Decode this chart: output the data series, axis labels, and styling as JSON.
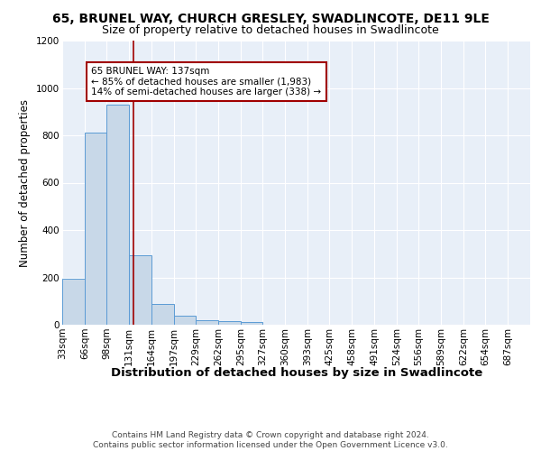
{
  "title1": "65, BRUNEL WAY, CHURCH GRESLEY, SWADLINCOTE, DE11 9LE",
  "title2": "Size of property relative to detached houses in Swadlincote",
  "xlabel": "Distribution of detached houses by size in Swadlincote",
  "ylabel": "Number of detached properties",
  "bin_labels": [
    "33sqm",
    "66sqm",
    "98sqm",
    "131sqm",
    "164sqm",
    "197sqm",
    "229sqm",
    "262sqm",
    "295sqm",
    "327sqm",
    "360sqm",
    "393sqm",
    "425sqm",
    "458sqm",
    "491sqm",
    "524sqm",
    "556sqm",
    "589sqm",
    "622sqm",
    "654sqm",
    "687sqm"
  ],
  "bin_edges": [
    33,
    66,
    98,
    131,
    164,
    197,
    229,
    262,
    295,
    327,
    360,
    393,
    425,
    458,
    491,
    524,
    556,
    589,
    622,
    654,
    687
  ],
  "bar_values": [
    195,
    810,
    930,
    295,
    88,
    38,
    20,
    14,
    10,
    0,
    0,
    0,
    0,
    0,
    0,
    0,
    0,
    0,
    0,
    0
  ],
  "bar_color": "#c8d8e8",
  "bar_edge_color": "#5b9bd5",
  "vline_x": 137,
  "vline_color": "#a00000",
  "annotation_text": "65 BRUNEL WAY: 137sqm\n← 85% of detached houses are smaller (1,983)\n14% of semi-detached houses are larger (338) →",
  "annotation_box_color": "white",
  "annotation_box_edge": "#a00000",
  "ylim": [
    0,
    1200
  ],
  "yticks": [
    0,
    200,
    400,
    600,
    800,
    1000,
    1200
  ],
  "footer": "Contains HM Land Registry data © Crown copyright and database right 2024.\nContains public sector information licensed under the Open Government Licence v3.0.",
  "bg_color": "#e8eff8",
  "title1_fontsize": 10,
  "title2_fontsize": 9,
  "xlabel_fontsize": 9.5,
  "ylabel_fontsize": 8.5,
  "tick_fontsize": 7.5,
  "footer_fontsize": 6.5,
  "annot_fontsize": 7.5
}
